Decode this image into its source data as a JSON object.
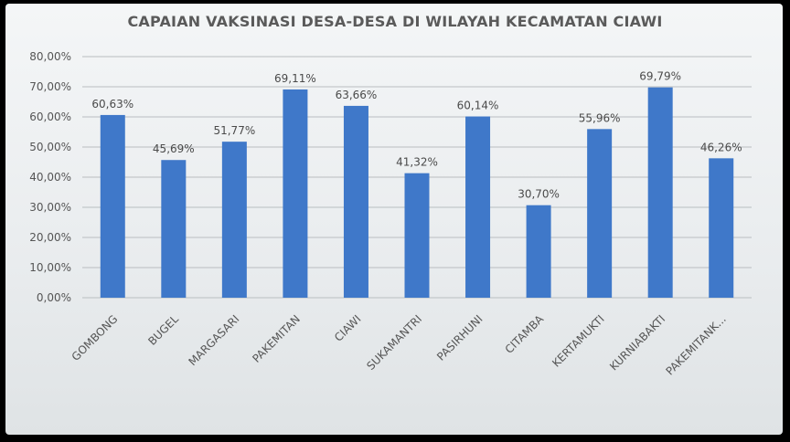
{
  "chart_data": {
    "type": "bar",
    "title": "CAPAIAN VAKSINASI DESA-DESA DI WILAYAH KECAMATAN CIAWI",
    "xlabel": "",
    "ylabel": "",
    "ylim": [
      0,
      80
    ],
    "yticks": [
      0,
      10,
      20,
      30,
      40,
      50,
      60,
      70,
      80
    ],
    "ytick_labels": [
      "0,00%",
      "10,00%",
      "20,00%",
      "30,00%",
      "40,00%",
      "50,00%",
      "60,00%",
      "70,00%",
      "80,00%"
    ],
    "grid": true,
    "legend": "none",
    "bar_color": "#3f78c9",
    "categories": [
      "GOMBONG",
      "BUGEL",
      "MARGASARI",
      "PAKEMITAN",
      "CIAWI",
      "SUKAMANTRI",
      "PASIRHUNI",
      "CITAMBA",
      "KERTAMUKTI",
      "KURNIABAKTI",
      "PAKEMITANK..."
    ],
    "values": [
      60.63,
      45.69,
      51.77,
      69.11,
      63.66,
      41.32,
      60.14,
      30.7,
      55.96,
      69.79,
      46.26
    ],
    "data_labels": [
      "60,63%",
      "45,69%",
      "51,77%",
      "69,11%",
      "63,66%",
      "41,32%",
      "60,14%",
      "30,70%",
      "55,96%",
      "69,79%",
      "46,26%"
    ]
  }
}
